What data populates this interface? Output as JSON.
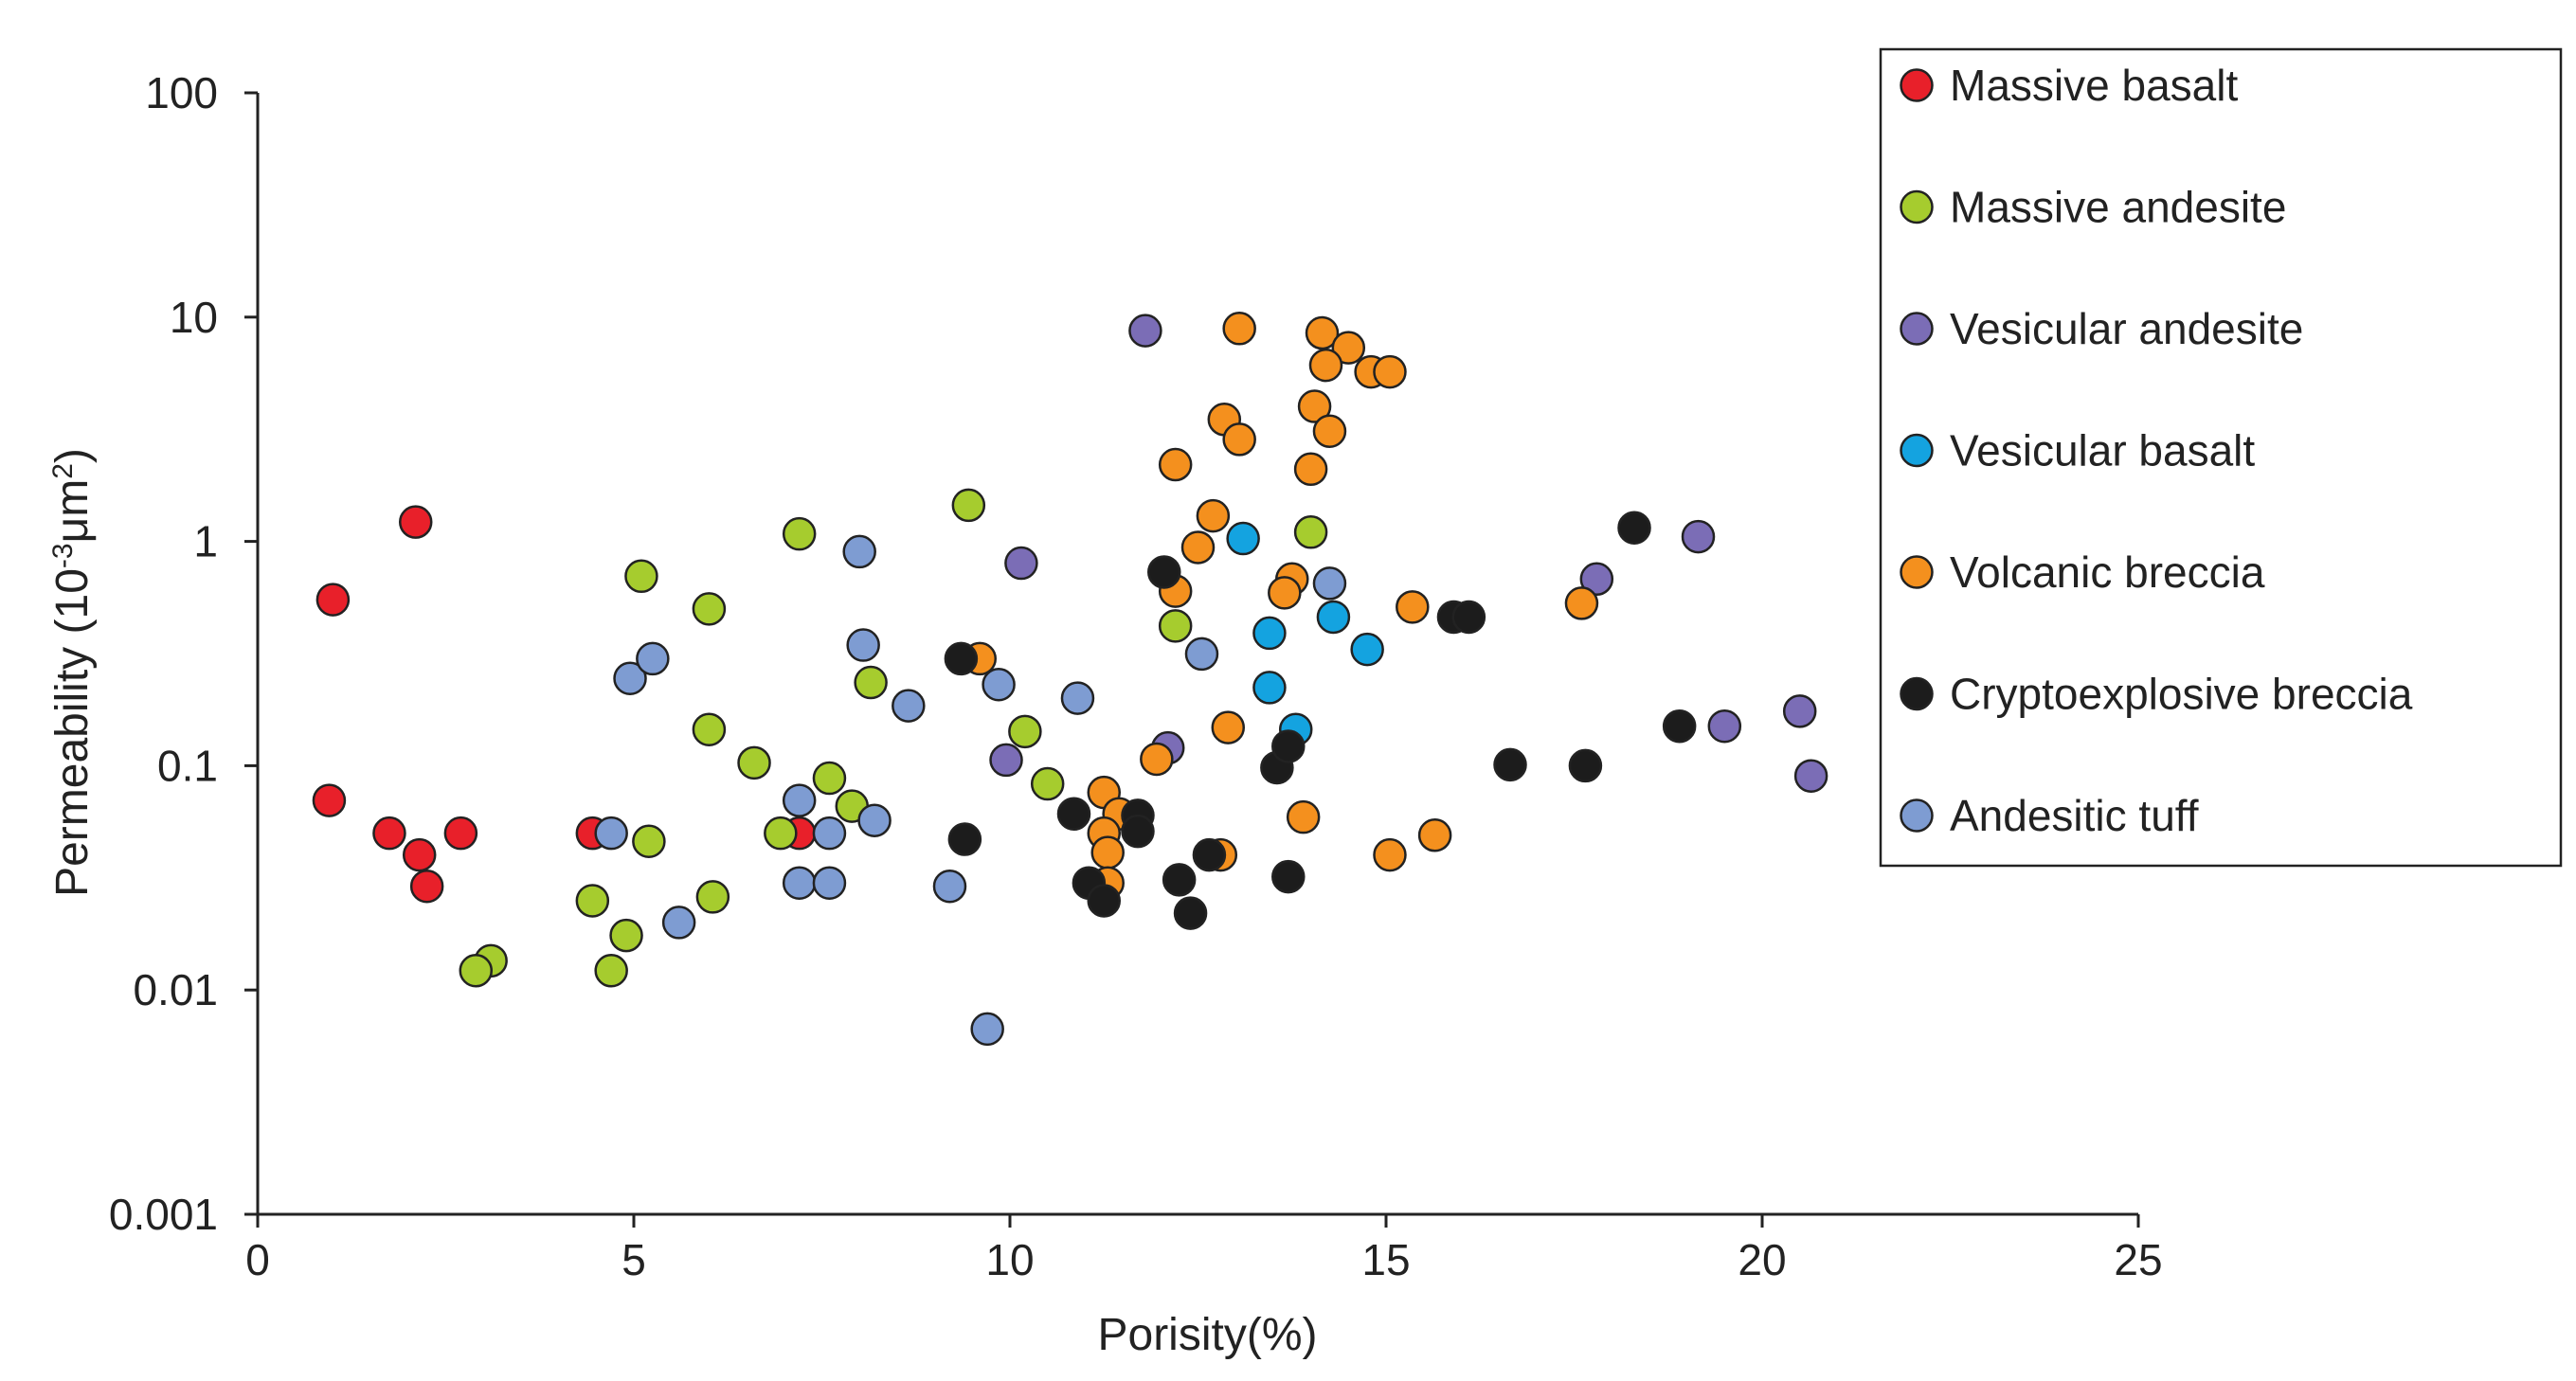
{
  "chart_data": {
    "type": "scatter",
    "xlabel": "Porisity(%)",
    "ylabel_main": "Permeability (10",
    "ylabel_sup1": "-3",
    "ylabel_mid": "μm",
    "ylabel_sup2": "2",
    "ylabel_end": ")",
    "xlim": [
      0,
      25
    ],
    "ylim": [
      0.001,
      100
    ],
    "y_scale": "log",
    "grid": false,
    "legend_position": "top-right",
    "x_ticks": [
      "0",
      "5",
      "10",
      "15",
      "20",
      "25"
    ],
    "y_ticks": [
      "0.001",
      "0.01",
      "0.1",
      "1",
      "10",
      "100"
    ],
    "series": [
      {
        "name": "Massive basalt",
        "color": "#e8202a",
        "points": [
          [
            1.0,
            0.55
          ],
          [
            2.1,
            1.22
          ],
          [
            0.95,
            0.07
          ],
          [
            1.75,
            0.05
          ],
          [
            2.15,
            0.04
          ],
          [
            2.25,
            0.029
          ],
          [
            2.7,
            0.05
          ],
          [
            4.45,
            0.05
          ],
          [
            7.2,
            0.05
          ]
        ]
      },
      {
        "name": "Massive andesite",
        "color": "#a6cc2e",
        "points": [
          [
            3.1,
            0.0135
          ],
          [
            2.9,
            0.0122
          ],
          [
            4.45,
            0.025
          ],
          [
            4.7,
            0.0122
          ],
          [
            4.9,
            0.0175
          ],
          [
            5.1,
            0.7
          ],
          [
            5.2,
            0.046
          ],
          [
            6.0,
            0.5
          ],
          [
            6.0,
            0.145
          ],
          [
            6.05,
            0.026
          ],
          [
            6.6,
            0.103
          ],
          [
            6.95,
            0.05
          ],
          [
            7.2,
            1.08
          ],
          [
            7.6,
            0.088
          ],
          [
            7.9,
            0.066
          ],
          [
            8.15,
            0.235
          ],
          [
            9.45,
            1.45
          ],
          [
            10.2,
            0.142
          ],
          [
            10.5,
            0.083
          ],
          [
            12.2,
            0.42
          ],
          [
            14.0,
            1.1
          ]
        ]
      },
      {
        "name": "Vesicular andesite",
        "color": "#7b6db6",
        "points": [
          [
            11.8,
            8.7
          ],
          [
            10.15,
            0.8
          ],
          [
            9.95,
            0.106
          ],
          [
            12.1,
            0.12
          ],
          [
            17.8,
            0.68
          ],
          [
            19.15,
            1.05
          ],
          [
            19.5,
            0.15
          ],
          [
            20.5,
            0.175
          ],
          [
            20.65,
            0.09
          ]
        ]
      },
      {
        "name": "Vesicular basalt",
        "color": "#14a3e0",
        "points": [
          [
            13.1,
            1.03
          ],
          [
            13.45,
            0.39
          ],
          [
            13.45,
            0.223
          ],
          [
            13.8,
            0.145
          ],
          [
            14.3,
            0.46
          ],
          [
            14.75,
            0.33
          ]
        ]
      },
      {
        "name": "Volcanic breccia",
        "color": "#f4901e",
        "points": [
          [
            13.05,
            8.9
          ],
          [
            14.15,
            8.5
          ],
          [
            14.5,
            7.3
          ],
          [
            14.2,
            6.1
          ],
          [
            14.8,
            5.7
          ],
          [
            15.05,
            5.7
          ],
          [
            12.85,
            3.5
          ],
          [
            13.05,
            2.85
          ],
          [
            14.05,
            4.0
          ],
          [
            14.25,
            3.1
          ],
          [
            12.2,
            2.2
          ],
          [
            14.0,
            2.1
          ],
          [
            12.7,
            1.3
          ],
          [
            12.5,
            0.94
          ],
          [
            12.2,
            0.6
          ],
          [
            13.75,
            0.68
          ],
          [
            13.65,
            0.59
          ],
          [
            15.35,
            0.51
          ],
          [
            17.6,
            0.53
          ],
          [
            9.6,
            0.3
          ],
          [
            12.9,
            0.148
          ],
          [
            11.95,
            0.107
          ],
          [
            11.25,
            0.076
          ],
          [
            11.45,
            0.061
          ],
          [
            11.25,
            0.05
          ],
          [
            11.3,
            0.041
          ],
          [
            11.3,
            0.03
          ],
          [
            12.8,
            0.04
          ],
          [
            13.9,
            0.059
          ],
          [
            15.05,
            0.04
          ],
          [
            15.65,
            0.049
          ]
        ]
      },
      {
        "name": "Cryptoexplosive breccia",
        "color": "#1c1c1c",
        "points": [
          [
            9.35,
            0.3
          ],
          [
            9.4,
            0.047
          ],
          [
            10.85,
            0.061
          ],
          [
            11.05,
            0.03
          ],
          [
            11.25,
            0.025
          ],
          [
            11.7,
            0.06
          ],
          [
            11.7,
            0.051
          ],
          [
            12.05,
            0.73
          ],
          [
            12.25,
            0.031
          ],
          [
            12.4,
            0.022
          ],
          [
            12.65,
            0.04
          ],
          [
            13.55,
            0.098
          ],
          [
            13.7,
            0.122
          ],
          [
            13.7,
            0.032
          ],
          [
            15.9,
            0.46
          ],
          [
            16.1,
            0.46
          ],
          [
            16.65,
            0.101
          ],
          [
            17.65,
            0.1
          ],
          [
            18.3,
            1.15
          ],
          [
            18.9,
            0.15
          ]
        ]
      },
      {
        "name": "Andesitic tuff",
        "color": "#7e9cd2",
        "points": [
          [
            4.95,
            0.245
          ],
          [
            5.25,
            0.3
          ],
          [
            4.7,
            0.05
          ],
          [
            5.6,
            0.02
          ],
          [
            7.2,
            0.07
          ],
          [
            7.2,
            0.03
          ],
          [
            7.6,
            0.05
          ],
          [
            7.6,
            0.03
          ],
          [
            8.0,
            0.9
          ],
          [
            8.05,
            0.345
          ],
          [
            8.2,
            0.057
          ],
          [
            8.65,
            0.185
          ],
          [
            9.2,
            0.029
          ],
          [
            9.7,
            0.0067
          ],
          [
            9.85,
            0.23
          ],
          [
            10.9,
            0.2
          ],
          [
            12.55,
            0.315
          ],
          [
            14.25,
            0.65
          ]
        ]
      }
    ]
  }
}
